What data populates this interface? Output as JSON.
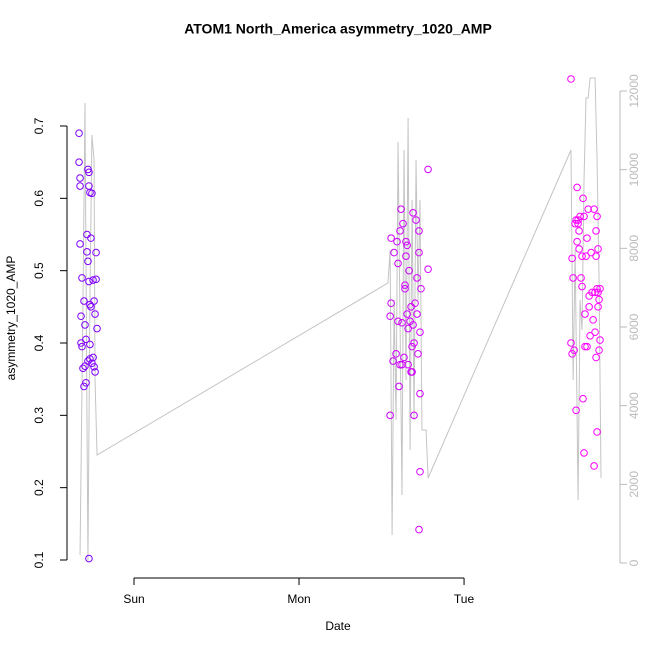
{
  "chart_data": {
    "type": "scatter",
    "title": "ATOM1 North_America asymmetry_1020_AMP",
    "x_label": "Date",
    "y_label": "asymmetry_1020_AMP",
    "xlim": [
      0.594,
      3.945
    ],
    "ylim": [
      0.0751,
      0.7954
    ],
    "y2lim": [
      -381,
      12864
    ],
    "xticks": [
      {
        "value": 1,
        "label": "Sun"
      },
      {
        "value": 2,
        "label": "Mon"
      },
      {
        "value": 3,
        "label": "Tue"
      }
    ],
    "yticks": [
      0.1,
      0.2,
      0.3,
      0.4,
      0.5,
      0.6,
      0.7
    ],
    "y2ticks": [
      0,
      2000,
      4000,
      6000,
      8000,
      10000,
      12000
    ],
    "series": [
      {
        "type": "scatter",
        "color_range": [
          "#7f00ff",
          "#ff00ff"
        ],
        "x": [
          0.667,
          0.667,
          0.673,
          0.673,
          0.673,
          0.679,
          0.679,
          0.685,
          0.685,
          0.691,
          0.697,
          0.697,
          0.703,
          0.703,
          0.709,
          0.709,
          0.715,
          0.715,
          0.721,
          0.721,
          0.727,
          0.727,
          0.727,
          0.727,
          0.733,
          0.733,
          0.733,
          0.733,
          0.739,
          0.739,
          0.745,
          0.745,
          0.752,
          0.752,
          0.758,
          0.758,
          0.764,
          0.764,
          0.77,
          0.77,
          0.776,
          0.721,
          2.552,
          2.552,
          2.558,
          2.558,
          2.57,
          2.576,
          2.588,
          2.594,
          2.6,
          2.6,
          2.606,
          2.612,
          2.612,
          2.618,
          2.624,
          2.63,
          2.636,
          2.642,
          2.642,
          2.648,
          2.648,
          2.655,
          2.655,
          2.661,
          2.661,
          2.667,
          2.673,
          2.679,
          2.679,
          2.685,
          2.685,
          2.691,
          2.691,
          2.697,
          2.697,
          2.703,
          2.709,
          2.715,
          2.715,
          2.721,
          2.727,
          2.727,
          2.733,
          2.733,
          2.733,
          2.727,
          2.739,
          2.782,
          2.782,
          2.624,
          3.648,
          3.648,
          3.655,
          3.655,
          3.661,
          3.667,
          3.673,
          3.679,
          3.679,
          3.685,
          3.685,
          3.691,
          3.691,
          3.697,
          3.697,
          3.703,
          3.709,
          3.715,
          3.715,
          3.721,
          3.721,
          3.727,
          3.727,
          3.733,
          3.733,
          3.739,
          3.745,
          3.745,
          3.752,
          3.758,
          3.758,
          3.764,
          3.77,
          3.776,
          3.782,
          3.788,
          3.788,
          3.794,
          3.794,
          3.8,
          3.8,
          3.8,
          3.806,
          3.806,
          3.812,
          3.812,
          3.812,
          3.818,
          3.818,
          3.824,
          3.824,
          3.806
        ],
        "values": [
          0.69,
          0.65,
          0.628,
          0.617,
          0.537,
          0.437,
          0.4,
          0.395,
          0.49,
          0.365,
          0.34,
          0.458,
          0.368,
          0.425,
          0.405,
          0.345,
          0.55,
          0.526,
          0.64,
          0.513,
          0.636,
          0.617,
          0.485,
          0.102,
          0.608,
          0.453,
          0.378,
          0.398,
          0.545,
          0.45,
          0.607,
          0.372,
          0.38,
          0.487,
          0.458,
          0.367,
          0.36,
          0.44,
          0.488,
          0.525,
          0.42,
          0.375,
          0.3,
          0.437,
          0.455,
          0.545,
          0.375,
          0.525,
          0.385,
          0.54,
          0.43,
          0.51,
          0.34,
          0.555,
          0.37,
          0.585,
          0.428,
          0.565,
          0.38,
          0.48,
          0.475,
          0.54,
          0.52,
          0.535,
          0.44,
          0.37,
          0.42,
          0.5,
          0.43,
          0.45,
          0.36,
          0.395,
          0.36,
          0.58,
          0.425,
          0.4,
          0.3,
          0.455,
          0.57,
          0.49,
          0.44,
          0.385,
          0.525,
          0.555,
          0.415,
          0.33,
          0.222,
          0.142,
          0.475,
          0.64,
          0.502,
          0.37,
          0.765,
          0.4,
          0.385,
          0.517,
          0.49,
          0.39,
          0.565,
          0.307,
          0.57,
          0.54,
          0.615,
          0.565,
          0.57,
          0.53,
          0.555,
          0.575,
          0.49,
          0.478,
          0.52,
          0.6,
          0.323,
          0.575,
          0.248,
          0.395,
          0.44,
          0.52,
          0.545,
          0.395,
          0.585,
          0.465,
          0.45,
          0.41,
          0.525,
          0.47,
          0.432,
          0.585,
          0.23,
          0.415,
          0.47,
          0.555,
          0.52,
          0.38,
          0.575,
          0.277,
          0.53,
          0.45,
          0.47,
          0.46,
          0.39,
          0.475,
          0.404,
          0.475
        ]
      },
      {
        "type": "line",
        "axis": "y2",
        "color": "#c4c4c4",
        "x": [
          0.673,
          0.679,
          0.691,
          0.703,
          0.715,
          0.721,
          0.733,
          0.745,
          0.758,
          0.764,
          0.776,
          2.539,
          2.552,
          2.564,
          2.576,
          2.588,
          2.6,
          2.612,
          2.624,
          2.636,
          2.648,
          2.661,
          2.673,
          2.685,
          2.697,
          2.709,
          2.721,
          2.733,
          2.745,
          2.758,
          2.77,
          2.782,
          3.648,
          3.661,
          3.673,
          3.691,
          3.703,
          3.715,
          3.727,
          3.739,
          3.752,
          3.764,
          3.794,
          3.806,
          3.818,
          3.83
        ],
        "values": [
          203,
          2364,
          6686,
          11695,
          3636,
          76,
          6686,
          10881,
          10246,
          4653,
          2746,
          7119,
          7958,
          712,
          6686,
          3636,
          10703,
          6178,
          1729,
          10500,
          4653,
          11314,
          2873,
          9229,
          3636,
          10246,
          6686,
          9229,
          3381,
          3381,
          3381,
          2161,
          10500,
          4653,
          7958,
          1602,
          6686,
          5924,
          9737,
          11822,
          11822,
          12330,
          12330,
          10246,
          7195,
          2161
        ]
      }
    ]
  }
}
